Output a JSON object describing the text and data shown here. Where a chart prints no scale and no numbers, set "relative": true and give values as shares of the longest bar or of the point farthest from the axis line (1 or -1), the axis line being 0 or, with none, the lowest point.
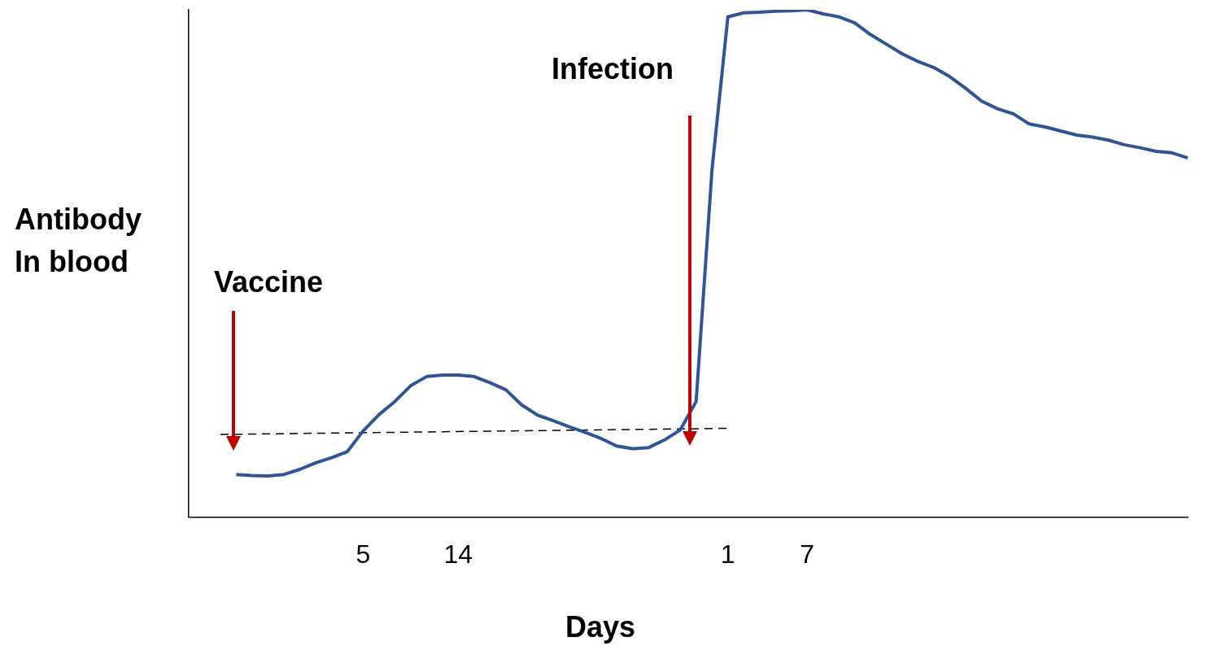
{
  "chart_data": {
    "type": "line",
    "relative": true,
    "xlabel": "Days",
    "ylabel": "Antibody In blood",
    "grid": false,
    "legend": false,
    "marker": "none",
    "categories": [
      null,
      null,
      null,
      null,
      null,
      null,
      null,
      null,
      null,
      null,
      null,
      "5",
      null,
      null,
      null,
      null,
      null,
      "14",
      null,
      null,
      null,
      null,
      null,
      null,
      null,
      null,
      null,
      null,
      null,
      null,
      null,
      null,
      null,
      null,
      "1",
      null,
      null,
      null,
      null,
      "7",
      null,
      null,
      null,
      null,
      null,
      null,
      null,
      null,
      null,
      null,
      null,
      null,
      null,
      null,
      null,
      null,
      null,
      null,
      null,
      null,
      null,
      null,
      null,
      null
    ],
    "series": [
      {
        "color": "#2f5597",
        "line_style": "solid",
        "values": [
          null,
          null,
          null,
          0.084,
          0.082,
          0.081,
          0.084,
          0.094,
          0.107,
          0.117,
          0.129,
          0.17,
          0.202,
          0.228,
          0.259,
          0.277,
          0.28,
          0.28,
          0.277,
          0.265,
          0.251,
          0.221,
          0.201,
          0.19,
          0.178,
          0.167,
          0.155,
          0.14,
          0.135,
          0.137,
          0.152,
          0.172,
          0.228,
          0.685,
          0.986,
          0.994,
          0.995,
          0.997,
          0.998,
          1,
          0.992,
          0.986,
          0.974,
          0.951,
          0.932,
          0.913,
          0.898,
          0.886,
          0.868,
          0.845,
          0.82,
          0.805,
          0.795,
          0.775,
          0.769,
          0.761,
          0.753,
          0.749,
          0.743,
          0.734,
          0.728,
          0.721,
          0.718,
          0.708
        ]
      },
      {
        "color": "#000000",
        "line_style": "dashed",
        "values": [
          null,
          null,
          0.163,
          null,
          null,
          null,
          null,
          null,
          null,
          null,
          null,
          null,
          null,
          null,
          null,
          null,
          null,
          null,
          null,
          null,
          null,
          null,
          null,
          null,
          null,
          null,
          null,
          null,
          null,
          null,
          null,
          null,
          null,
          null,
          0.175,
          null,
          null,
          null,
          null,
          null,
          null,
          null,
          null,
          null,
          null,
          null,
          null,
          null,
          null,
          null,
          null,
          null,
          null,
          null,
          null,
          null,
          null,
          null,
          null,
          null,
          null,
          null,
          null,
          null
        ]
      }
    ],
    "annotations": [
      "Vaccine",
      "Infection"
    ]
  }
}
